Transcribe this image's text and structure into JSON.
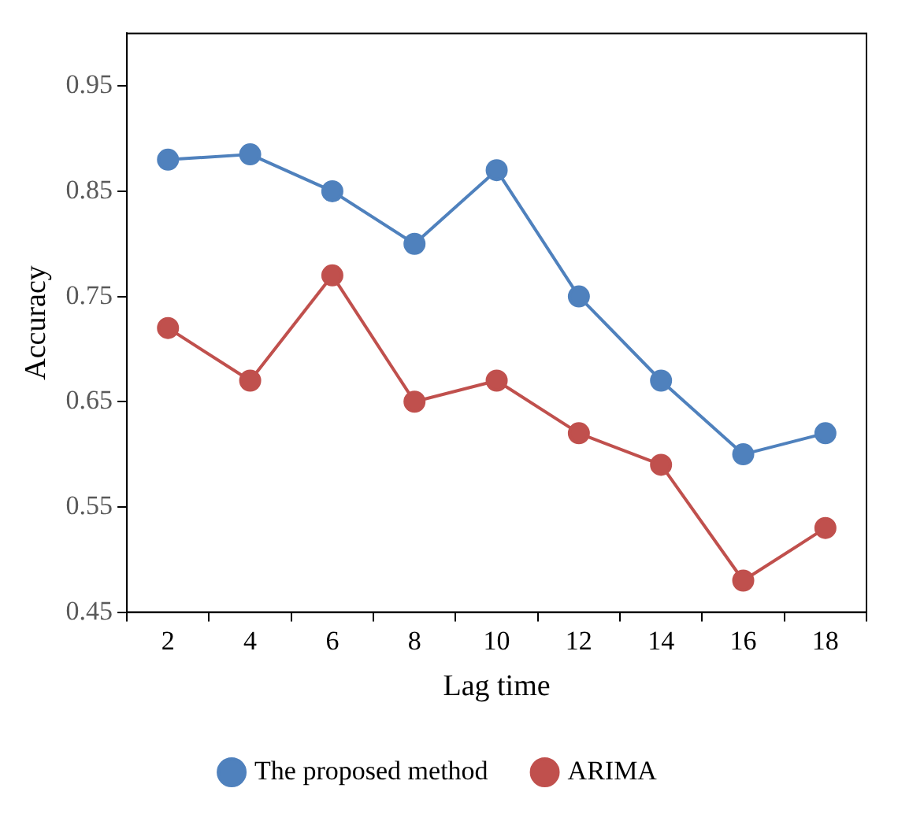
{
  "chart_data": {
    "type": "line",
    "xlabel": "Lag time",
    "ylabel": "Accuracy",
    "categories": [
      "2",
      "4",
      "6",
      "8",
      "10",
      "12",
      "14",
      "16",
      "18"
    ],
    "series": [
      {
        "name": "The proposed method",
        "color": "#4f81bd",
        "values": [
          0.88,
          0.885,
          0.85,
          0.8,
          0.87,
          0.75,
          0.67,
          0.6,
          0.62
        ]
      },
      {
        "name": "ARIMA",
        "color": "#c0504d",
        "values": [
          0.72,
          0.67,
          0.77,
          0.65,
          0.67,
          0.62,
          0.59,
          0.48,
          0.53
        ]
      }
    ],
    "ylim": [
      0.45,
      1.0
    ],
    "yticks": [
      0.45,
      0.55,
      0.65,
      0.75,
      0.85,
      0.95
    ],
    "grid": false,
    "legend": "bottom",
    "marker": "circle",
    "line_style": "solid"
  }
}
